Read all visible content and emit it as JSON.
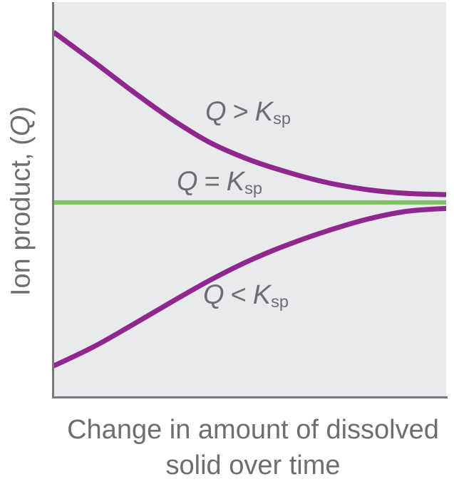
{
  "figure": {
    "background": "#ffffff",
    "plot_bg": "#e9eaec",
    "axis_color": "#77787b",
    "text_color": "#6d6e71",
    "purple": "#90278f",
    "green": "#7dc462"
  },
  "labels": {
    "y_axis": {
      "prefix": "Ion product, (",
      "symbol": "Q",
      "suffix": ")"
    },
    "x_axis_line1": "Change in amount of dissolved",
    "x_axis_line2": "solid over time",
    "above": {
      "q": "Q",
      "op": ">",
      "k": "K",
      "sub": "sp"
    },
    "equal": {
      "q": "Q",
      "op": "=",
      "k": "K",
      "sub": "sp"
    },
    "below": {
      "q": "Q",
      "op": "<",
      "k": "K",
      "sub": "sp"
    }
  },
  "chart_data": {
    "type": "line",
    "title": "",
    "xlabel": "Change in amount of dissolved solid over time",
    "ylabel": "Ion product, (Q)",
    "x_range": [
      0,
      1
    ],
    "y_unit": "Q relative to Ksp (Ksp = 0)",
    "grid": false,
    "ticks": false,
    "legend_position": "inline-labels",
    "series": [
      {
        "id": "curve-q-greater-ksp",
        "name": "Q > Ksp",
        "label": "Q > Ksp",
        "color": "#90278f",
        "stroke_width": 7,
        "x": [
          0,
          0.1,
          0.2,
          0.3,
          0.4,
          0.5,
          0.6,
          0.7,
          0.8,
          0.9,
          1.0
        ],
        "q_minus_ksp": [
          1.0,
          0.83,
          0.655,
          0.49,
          0.35,
          0.25,
          0.175,
          0.115,
          0.075,
          0.053,
          0.046
        ]
      },
      {
        "id": "equilibrium-line",
        "name": "Q = Ksp",
        "label": "Q = Ksp",
        "color": "#7dc462",
        "stroke_width": 6,
        "x": [
          0,
          1
        ],
        "q_minus_ksp": [
          0,
          0
        ]
      },
      {
        "id": "curve-q-less-ksp",
        "name": "Q < Ksp",
        "label": "Q < Ksp",
        "color": "#90278f",
        "stroke_width": 7,
        "x": [
          0,
          0.1,
          0.2,
          0.3,
          0.4,
          0.5,
          0.6,
          0.7,
          0.8,
          0.9,
          1.0
        ],
        "q_minus_ksp": [
          -0.96,
          -0.85,
          -0.72,
          -0.585,
          -0.455,
          -0.34,
          -0.245,
          -0.165,
          -0.098,
          -0.052,
          -0.035
        ]
      }
    ]
  }
}
